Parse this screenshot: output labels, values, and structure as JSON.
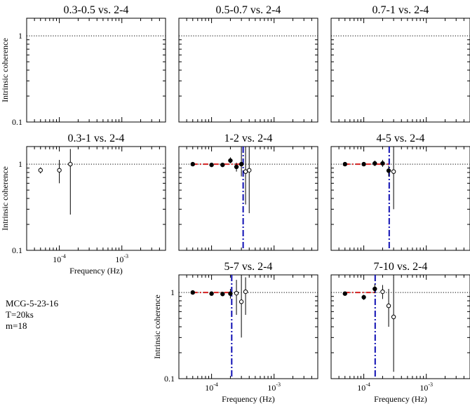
{
  "figure": {
    "info_lines": [
      "MCG-5-23-16",
      "T=20ks",
      "m=18"
    ],
    "axis_labels": {
      "x": "Frequency (Hz)",
      "y": "Intrinsic coherence"
    },
    "tick_labels": {
      "y_1": "1",
      "y_0_1": "0.1",
      "x_1e-4": {
        "base": "10",
        "exp": "-4"
      },
      "x_1e-3": {
        "base": "10",
        "exp": "-3"
      }
    },
    "colors": {
      "model": "#d62020",
      "cutoff": "#1010b4",
      "axis": "#000000"
    }
  },
  "chart_data": [
    {
      "type": "scatter",
      "title": "0.3-0.5 vs. 2-4",
      "xlabel": "",
      "ylabel": "Intrinsic coherence",
      "xscale": "log",
      "yscale": "log",
      "xlim": [
        3e-05,
        0.005
      ],
      "ylim": [
        0.1,
        1.6
      ],
      "reference_line": 1,
      "points": []
    },
    {
      "type": "scatter",
      "title": "0.5-0.7 vs. 2-4",
      "xlabel": "",
      "ylabel": "",
      "xscale": "log",
      "yscale": "log",
      "xlim": [
        3e-05,
        0.005
      ],
      "ylim": [
        0.1,
        1.6
      ],
      "reference_line": 1,
      "points": []
    },
    {
      "type": "scatter",
      "title": "0.7-1 vs. 2-4",
      "xlabel": "",
      "ylabel": "",
      "xscale": "log",
      "yscale": "log",
      "xlim": [
        3e-05,
        0.005
      ],
      "ylim": [
        0.1,
        1.6
      ],
      "reference_line": 1,
      "points": []
    },
    {
      "type": "scatter",
      "title": "0.3-1 vs. 2-4",
      "xlabel": "Frequency (Hz)",
      "ylabel": "Intrinsic coherence",
      "xscale": "log",
      "yscale": "log",
      "xlim": [
        3e-05,
        0.005
      ],
      "ylim": [
        0.1,
        1.6
      ],
      "reference_line": 1,
      "points": [
        {
          "x": 5e-05,
          "y": 0.85,
          "lo": 0.78,
          "hi": 0.92,
          "filled": false
        },
        {
          "x": 0.0001,
          "y": 0.85,
          "lo": 0.6,
          "hi": 1.12,
          "filled": false
        },
        {
          "x": 0.00015,
          "y": 1.0,
          "lo": 0.26,
          "hi": 1.5,
          "filled": false
        }
      ]
    },
    {
      "type": "scatter",
      "title": "1-2 vs. 2-4",
      "xlabel": "",
      "ylabel": "",
      "xscale": "log",
      "yscale": "log",
      "xlim": [
        3e-05,
        0.005
      ],
      "ylim": [
        0.1,
        1.6
      ],
      "reference_line": 1,
      "model_level": 1,
      "model_end": 0.00032,
      "cutoff": 0.00032,
      "points": [
        {
          "x": 5e-05,
          "y": 1.0,
          "lo": 0.98,
          "hi": 1.02,
          "filled": true
        },
        {
          "x": 0.0001,
          "y": 0.98,
          "lo": 0.95,
          "hi": 1.01,
          "filled": true
        },
        {
          "x": 0.00015,
          "y": 0.98,
          "lo": 0.94,
          "hi": 1.02,
          "filled": true
        },
        {
          "x": 0.0002,
          "y": 1.1,
          "lo": 1.02,
          "hi": 1.2,
          "filled": true
        },
        {
          "x": 0.00025,
          "y": 0.93,
          "lo": 0.82,
          "hi": 1.04,
          "filled": true
        },
        {
          "x": 0.0003,
          "y": 1.0,
          "lo": 0.72,
          "hi": 1.5,
          "filled": true
        },
        {
          "x": 0.00035,
          "y": 0.82,
          "lo": 0.34,
          "hi": 1.6,
          "filled": false
        },
        {
          "x": 0.0004,
          "y": 0.85,
          "lo": 0.27,
          "hi": 1.5,
          "filled": false
        }
      ]
    },
    {
      "type": "scatter",
      "title": "4-5 vs. 2-4",
      "xlabel": "",
      "ylabel": "",
      "xscale": "log",
      "yscale": "log",
      "xlim": [
        3e-05,
        0.005
      ],
      "ylim": [
        0.1,
        1.6
      ],
      "reference_line": 1,
      "model_level": 1,
      "model_end": 0.00025,
      "cutoff": 0.000255,
      "points": [
        {
          "x": 5e-05,
          "y": 1.0,
          "lo": 0.98,
          "hi": 1.02,
          "filled": true
        },
        {
          "x": 0.0001,
          "y": 1.0,
          "lo": 0.97,
          "hi": 1.03,
          "filled": true
        },
        {
          "x": 0.00015,
          "y": 1.02,
          "lo": 0.95,
          "hi": 1.1,
          "filled": true
        },
        {
          "x": 0.0002,
          "y": 1.02,
          "lo": 0.93,
          "hi": 1.12,
          "filled": true
        },
        {
          "x": 0.00025,
          "y": 0.84,
          "lo": 0.72,
          "hi": 0.96,
          "filled": true
        },
        {
          "x": 0.0003,
          "y": 0.82,
          "lo": 0.3,
          "hi": 1.5,
          "filled": false
        }
      ]
    },
    {
      "type": "scatter",
      "title": "5-7 vs. 2-4",
      "xlabel": "Frequency (Hz)",
      "ylabel": "Intrinsic coherence",
      "xscale": "log",
      "yscale": "log",
      "xlim": [
        3e-05,
        0.005
      ],
      "ylim": [
        0.1,
        1.6
      ],
      "reference_line": 1,
      "model_level": 1,
      "model_end": 0.00021,
      "cutoff": 0.00021,
      "points": [
        {
          "x": 5e-05,
          "y": 1.0,
          "lo": 0.98,
          "hi": 1.02,
          "filled": true
        },
        {
          "x": 0.0001,
          "y": 0.97,
          "lo": 0.94,
          "hi": 1.0,
          "filled": true
        },
        {
          "x": 0.00015,
          "y": 0.96,
          "lo": 0.91,
          "hi": 1.01,
          "filled": true
        },
        {
          "x": 0.0002,
          "y": 0.97,
          "lo": 0.85,
          "hi": 1.1,
          "filled": true
        },
        {
          "x": 0.00025,
          "y": 0.98,
          "lo": 0.55,
          "hi": 1.4,
          "filled": false
        },
        {
          "x": 0.0003,
          "y": 0.78,
          "lo": 0.3,
          "hi": 1.5,
          "filled": false
        },
        {
          "x": 0.00035,
          "y": 1.02,
          "lo": 0.55,
          "hi": 1.5,
          "filled": false
        }
      ]
    },
    {
      "type": "scatter",
      "title": "7-10 vs. 2-4",
      "xlabel": "Frequency (Hz)",
      "ylabel": "",
      "xscale": "log",
      "yscale": "log",
      "xlim": [
        3e-05,
        0.005
      ],
      "ylim": [
        0.1,
        1.6
      ],
      "reference_line": 1,
      "model_level": 1,
      "model_end": 0.00015,
      "cutoff": 0.000152,
      "points": [
        {
          "x": 5e-05,
          "y": 0.97,
          "lo": 0.95,
          "hi": 0.99,
          "filled": true
        },
        {
          "x": 0.0001,
          "y": 0.88,
          "lo": 0.82,
          "hi": 0.94,
          "filled": true
        },
        {
          "x": 0.00015,
          "y": 1.1,
          "lo": 0.98,
          "hi": 1.25,
          "filled": true
        },
        {
          "x": 0.0002,
          "y": 1.02,
          "lo": 0.84,
          "hi": 1.22,
          "filled": false
        },
        {
          "x": 0.00025,
          "y": 0.7,
          "lo": 0.4,
          "hi": 1.1,
          "filled": false
        },
        {
          "x": 0.0003,
          "y": 0.52,
          "lo": 0.12,
          "hi": 1.5,
          "filled": false
        }
      ]
    }
  ]
}
